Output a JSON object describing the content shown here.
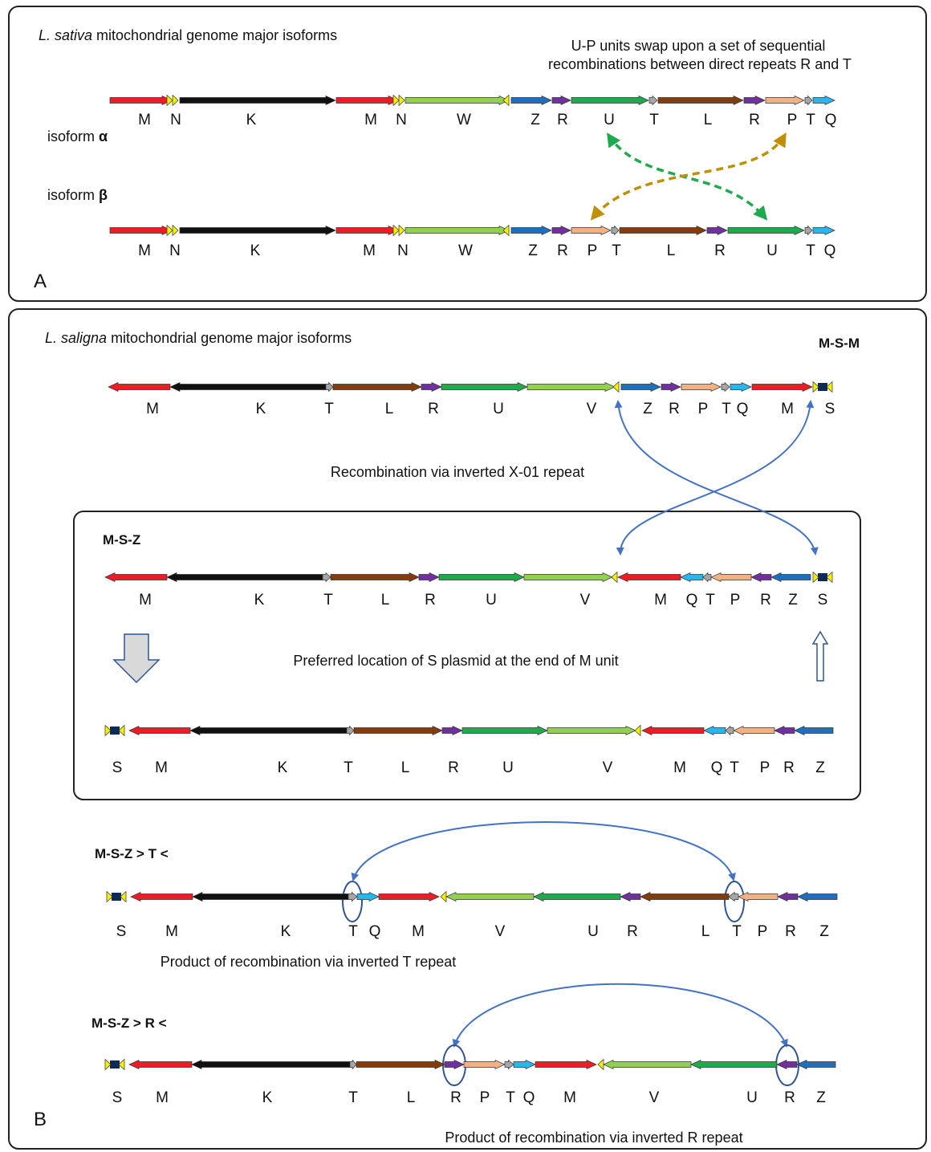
{
  "colors": {
    "M": "#ee1c24",
    "K": "#111111",
    "W": "#92d050",
    "V": "#92d050",
    "Z": "#1f6fbf",
    "R": "#7030a0",
    "U": "#1faa4e",
    "T": "#a6a6a6",
    "L": "#843c0c",
    "P": "#f4b183",
    "Q": "#29b5ee",
    "rep": "#f5f200",
    "S": "#0b2a57",
    "curve_blue": "#4472c4",
    "swap_green": "#1faa4e",
    "swap_gold": "#bf9000"
  },
  "panelA": {
    "letter": "A",
    "title_italic": "L. sativa",
    "title_rest": " mitochondrial genome major isoforms",
    "note_line1": "U-P units swap upon a set of sequential",
    "note_line2": "recombinations between direct repeats R and T",
    "isoform_alpha_prefix": "isoform ",
    "isoform_alpha_symbol": "α",
    "isoform_beta_prefix": "isoform ",
    "isoform_beta_symbol": "β",
    "alpha_labels": [
      "M",
      "N",
      "K",
      "M",
      "N",
      "W",
      "Z",
      "R",
      "U",
      "T",
      "L",
      "R",
      "P",
      "T",
      "Q"
    ],
    "beta_labels": [
      "M",
      "N",
      "K",
      "M",
      "N",
      "W",
      "Z",
      "R",
      "P",
      "T",
      "L",
      "R",
      "U",
      "T",
      "Q"
    ]
  },
  "panelB": {
    "letter": "B",
    "title_italic": "L. saligna",
    "title_rest": " mitochondrial genome major isoforms",
    "msm_label": "M-S-M",
    "msm_labels": [
      "M",
      "K",
      "T",
      "L",
      "R",
      "U",
      "V",
      "Z",
      "R",
      "P",
      "T",
      "Q",
      "M",
      "S"
    ],
    "recomb_x01": "Recombination via inverted X-01 repeat",
    "msz_label": "M-S-Z",
    "msz_labels": [
      "M",
      "K",
      "T",
      "L",
      "R",
      "U",
      "V",
      "M",
      "Q",
      "T",
      "P",
      "R",
      "Z",
      "S"
    ],
    "preferred": "Preferred location of S plasmid at the end of M unit",
    "msz2_labels": [
      "S",
      "M",
      "K",
      "T",
      "L",
      "R",
      "U",
      "V",
      "M",
      "Q",
      "T",
      "P",
      "R",
      "Z"
    ],
    "mszT_label": "M-S-Z > T <",
    "mszT_labels": [
      "S",
      "M",
      "K",
      "T",
      "Q",
      "M",
      "V",
      "U",
      "R",
      "L",
      "T",
      "P",
      "R",
      "Z"
    ],
    "mszT_caption": "Product of recombination via inverted T repeat",
    "mszR_label": "M-S-Z > R <",
    "mszR_labels": [
      "S",
      "M",
      "K",
      "T",
      "L",
      "R",
      "P",
      "T",
      "Q",
      "M",
      "V",
      "U",
      "R",
      "Z"
    ],
    "mszR_caption": "Product of recombination via inverted R repeat"
  }
}
